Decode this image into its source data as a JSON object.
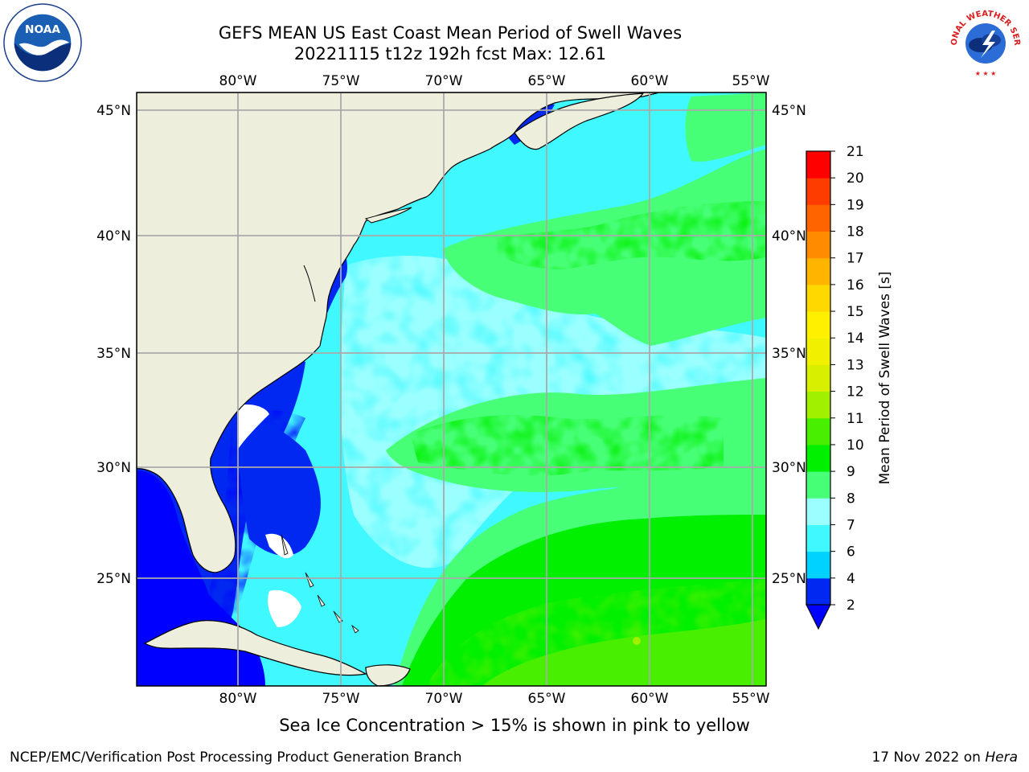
{
  "header": {
    "title_line1": "GEFS MEAN US East Coast Mean Period of Swell Waves",
    "title_line2": "20221115 t12z 192h fcst   Max: 12.61"
  },
  "logos": {
    "left": {
      "icon": "noaa-logo",
      "text": "NOAA"
    },
    "right": {
      "icon": "nws-logo",
      "text": "NATIONAL WEATHER SERVICE"
    }
  },
  "map": {
    "region": "US East Coast / Western North Atlantic",
    "lon_labels": [
      "80°W",
      "75°W",
      "70°W",
      "65°W",
      "60°W",
      "55°W"
    ],
    "lat_labels": [
      "45°N",
      "40°N",
      "35°N",
      "30°N",
      "25°N"
    ],
    "lon_range": [
      -85,
      -54.5
    ],
    "lat_range": [
      20.5,
      46
    ],
    "land_color": "#eeeedd",
    "coastline_color": "#000000",
    "gridline_color": "#aaaaaa"
  },
  "colorbar": {
    "label": "Mean Period of Swell Waves [s]",
    "ticks": [
      "2",
      "4",
      "6",
      "7",
      "8",
      "9",
      "10",
      "11",
      "12",
      "13",
      "14",
      "15",
      "16",
      "17",
      "18",
      "19",
      "20",
      "21"
    ],
    "colors": [
      "#0028f0",
      "#00d2ff",
      "#40f8ff",
      "#9cffff",
      "#48ff78",
      "#00f000",
      "#48f000",
      "#a0f000",
      "#d8f000",
      "#f0f000",
      "#fff000",
      "#ffd800",
      "#ffb400",
      "#ff8c00",
      "#ff6400",
      "#ff3c00",
      "#ff0000"
    ],
    "under_color": "#0000ff"
  },
  "footer": {
    "ice_note": "Sea Ice Concentration > 15% is shown in pink to yellow",
    "left": "NCEP/EMC/Verification Post Processing Product Generation Branch",
    "date": "17 Nov 2022 on ",
    "host": "Hera"
  }
}
